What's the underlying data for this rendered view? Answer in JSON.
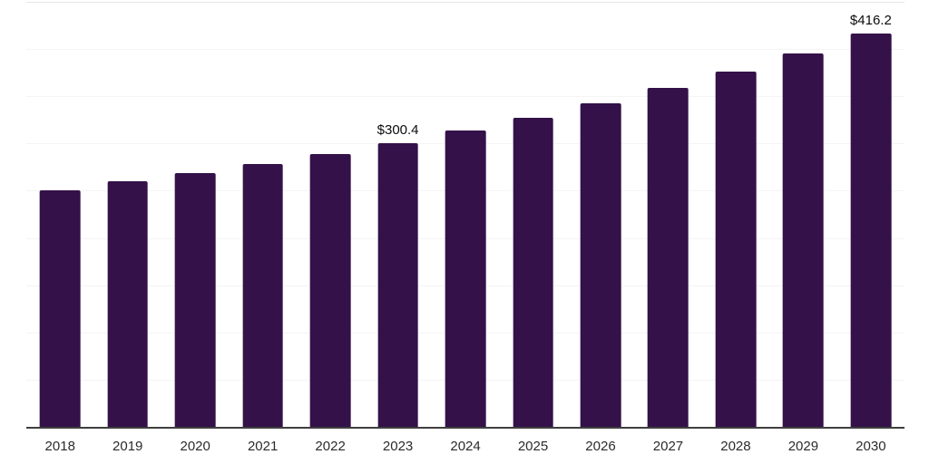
{
  "chart_data": {
    "type": "bar",
    "title": "",
    "xlabel": "",
    "ylabel": "",
    "categories": [
      "2018",
      "2019",
      "2020",
      "2021",
      "2022",
      "2023",
      "2024",
      "2025",
      "2026",
      "2027",
      "2028",
      "2029",
      "2030"
    ],
    "values": [
      250.5,
      259.7,
      269.1,
      278.4,
      289.3,
      300.4,
      313.8,
      327.5,
      343.0,
      358.9,
      376.3,
      395.1,
      416.2
    ],
    "data_labels": [
      "",
      "",
      "",
      "",
      "",
      "$300.4",
      "",
      "",
      "",
      "",
      "",
      "",
      "$416.2"
    ],
    "ylim": [
      0,
      450
    ],
    "gridline_step": 50,
    "grid": true,
    "legend": "none",
    "y_axis_tick_labels_visible": false,
    "colors": {
      "bar": "#341149",
      "gridline": "#f4f4f5",
      "gridline_top": "#e7e7e7",
      "axis_line": "#3f3f3f",
      "x_tick_label": "#2b2b2b",
      "data_label": "#0c0c0c",
      "background": "#ffffff"
    }
  }
}
